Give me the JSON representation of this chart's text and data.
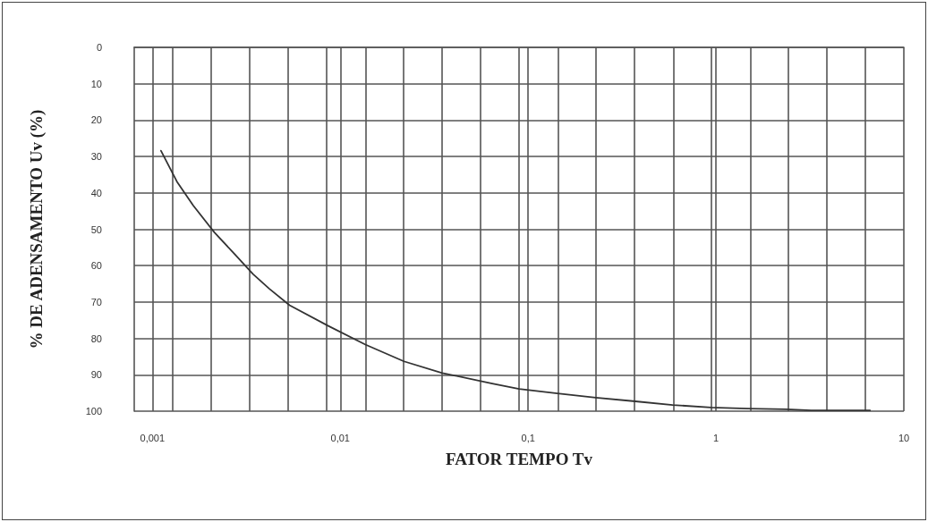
{
  "chart_data": {
    "type": "line",
    "xlabel": "FATOR TEMPO Tv",
    "ylabel": "% DE ADENSAMENTO Uv (%)",
    "log": "x",
    "grid": true,
    "marker": "none",
    "line_style": "solid",
    "xlim": [
      0.0008,
      10
    ],
    "ylim": [
      100,
      0
    ],
    "xticks": [
      {
        "value": 0.001,
        "label": "0,001"
      },
      {
        "value": 0.01,
        "label": "0,01"
      },
      {
        "value": 0.1,
        "label": "0,1"
      },
      1,
      10,
      {
        "value": 0.00128,
        "label": null
      },
      {
        "value": 0.00206,
        "label": null
      },
      {
        "value": 0.0033,
        "label": null
      },
      {
        "value": 0.00528,
        "label": null
      },
      {
        "value": 0.00847,
        "label": null
      },
      {
        "value": 0.0136,
        "label": null
      },
      {
        "value": 0.0217,
        "label": null
      },
      {
        "value": 0.0348,
        "label": null
      },
      {
        "value": 0.0558,
        "label": null
      },
      {
        "value": 0.0895,
        "label": null
      },
      {
        "value": 0.144,
        "label": null
      },
      {
        "value": 0.23,
        "label": null
      },
      {
        "value": 0.369,
        "label": null
      },
      {
        "value": 0.592,
        "label": null
      },
      {
        "value": 0.948,
        "label": null
      },
      {
        "value": 1.52,
        "label": null
      },
      {
        "value": 2.43,
        "label": null
      },
      {
        "value": 3.9,
        "label": null
      },
      {
        "value": 6.25,
        "label": null
      }
    ],
    "yticks": [
      0,
      10,
      20,
      30,
      40,
      50,
      60,
      70,
      80,
      90,
      100
    ],
    "series": [
      {
        "color": "#333333",
        "x": [
          0.00111,
          0.00135,
          0.00165,
          0.00214,
          0.0027,
          0.00343,
          0.00418,
          0.00537,
          0.00859,
          0.0136,
          0.0218,
          0.0349,
          0.0644,
          0.0895,
          0.143,
          0.229,
          0.372,
          0.588,
          0.94,
          1.47,
          2.36,
          3.21,
          6.61
        ],
        "values": [
          28.4,
          36.9,
          43.5,
          50.9,
          56.5,
          62.3,
          66.3,
          70.9,
          76.5,
          81.7,
          86.3,
          89.5,
          92.4,
          93.9,
          95.1,
          96.3,
          97.3,
          98.3,
          99.0,
          99.3,
          99.5,
          99.8,
          99.8
        ]
      }
    ]
  }
}
